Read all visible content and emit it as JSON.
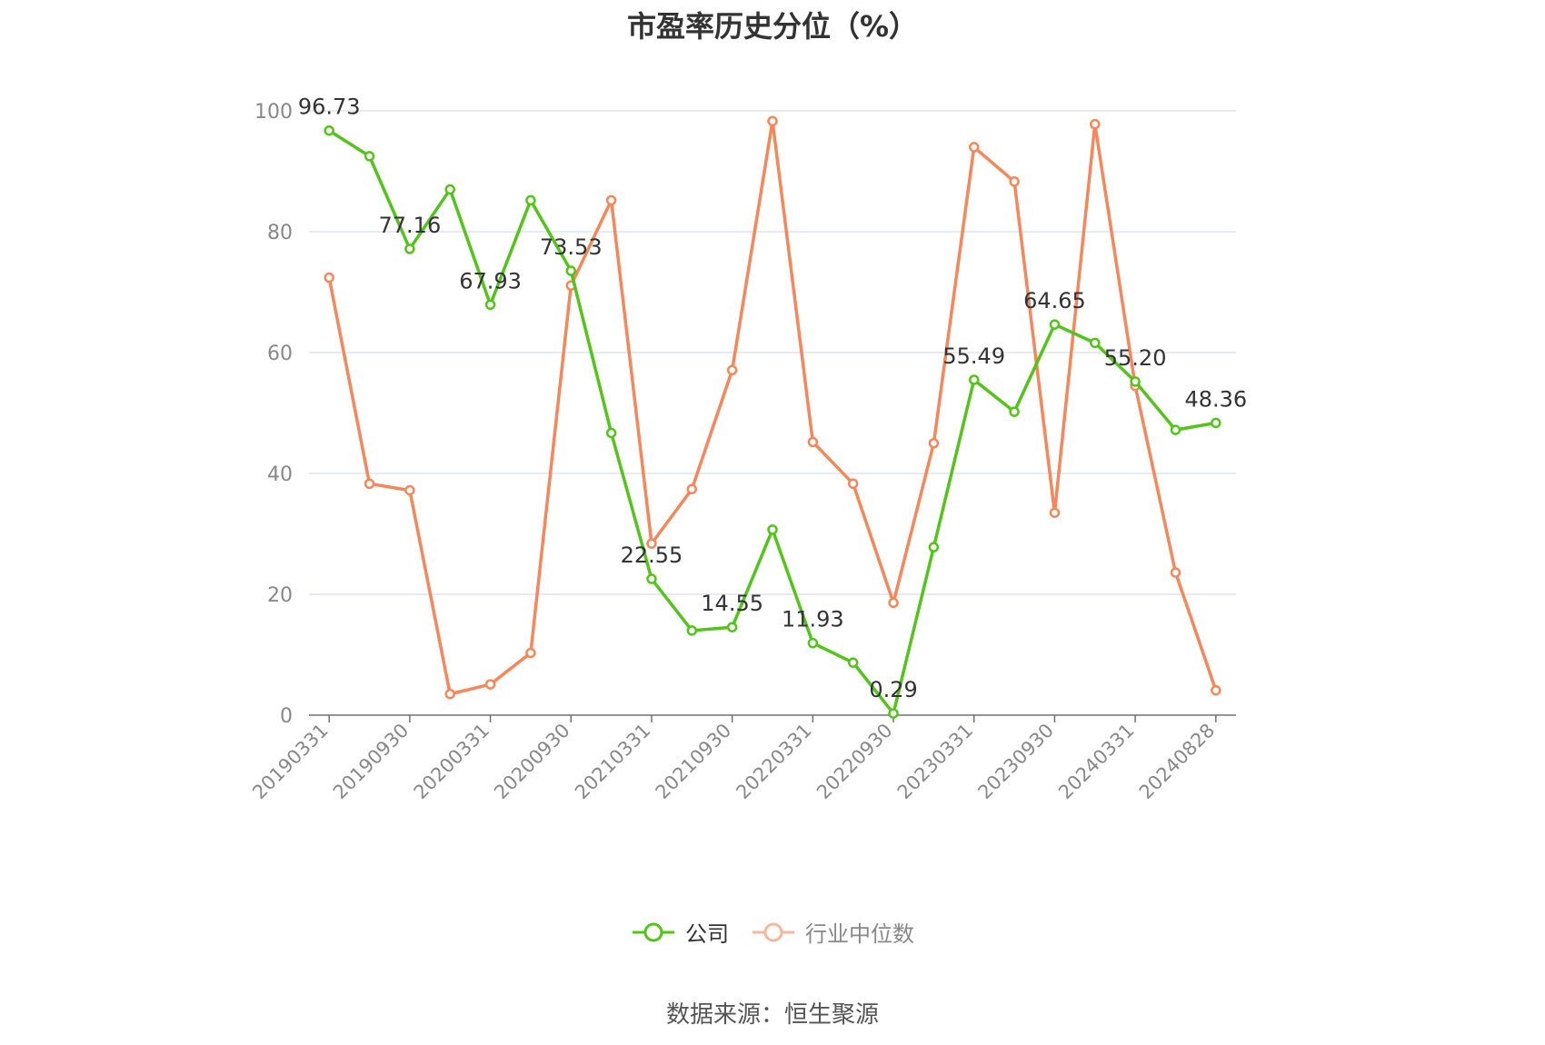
{
  "title": "市盈率历史分位（%）",
  "source": "数据来源：恒生聚源",
  "legend": [
    {
      "name": "公司",
      "color": "#52c41a",
      "text_color": "#333333"
    },
    {
      "name": "行业中位数",
      "color": "#f5875a",
      "text_color": "#888888"
    }
  ],
  "chart_data": {
    "type": "line",
    "title": "市盈率历史分位（%）",
    "xlabel": "",
    "ylabel": "",
    "ylim": [
      0,
      100
    ],
    "yticks": [
      0,
      20,
      40,
      60,
      80,
      100
    ],
    "grid": true,
    "legend_position": "bottom",
    "x": [
      "20190331",
      "20190630",
      "20190930",
      "20191231",
      "20200331",
      "20200630",
      "20200930",
      "20201231",
      "20210331",
      "20210630",
      "20210930",
      "20211231",
      "20220331",
      "20220630",
      "20220930",
      "20221231",
      "20230331",
      "20230630",
      "20230930",
      "20231231",
      "20240331",
      "20240630",
      "20240828"
    ],
    "x_tick_labels": [
      "20190331",
      "20190930",
      "20200331",
      "20200930",
      "20210331",
      "20210930",
      "20220331",
      "20220930",
      "20230331",
      "20230930",
      "20240331",
      "20240828"
    ],
    "series": [
      {
        "name": "公司",
        "color": "#52c41a",
        "values": [
          96.73,
          92.5,
          77.16,
          87.0,
          67.93,
          85.2,
          73.53,
          46.7,
          22.55,
          14.0,
          14.55,
          30.7,
          11.93,
          8.7,
          0.29,
          27.8,
          55.49,
          50.2,
          64.65,
          61.6,
          55.2,
          47.2,
          48.36
        ],
        "labels": [
          "96.73",
          "",
          "77.16",
          "",
          "67.93",
          "",
          "73.53",
          "",
          "22.55",
          "",
          "14.55",
          "",
          "11.93",
          "",
          "0.29",
          "",
          "55.49",
          "",
          "64.65",
          "",
          "55.20",
          "",
          "48.36"
        ]
      },
      {
        "name": "行业中位数",
        "color": "#f5875a",
        "values": [
          72.4,
          38.3,
          37.2,
          3.5,
          5.1,
          10.3,
          71.1,
          85.2,
          28.4,
          37.4,
          57.1,
          98.3,
          45.2,
          38.3,
          18.6,
          45.0,
          94.0,
          88.3,
          33.5,
          97.8,
          54.5,
          23.6,
          4.1
        ]
      }
    ]
  }
}
